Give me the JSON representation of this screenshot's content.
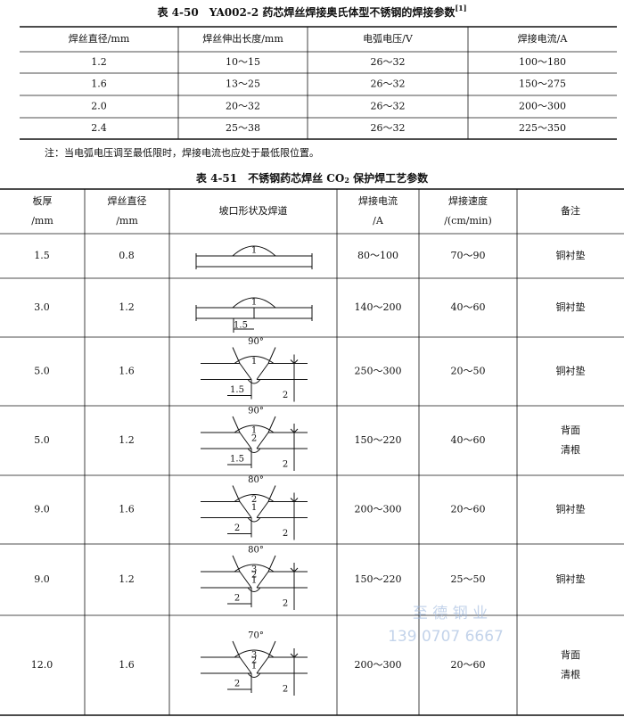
{
  "table_50": {
    "title": "表 4-50　YA002-2 药芯焊丝焊接奥氏体型不锈钢的焊接参数",
    "title_ref": "[1]",
    "headers": [
      "焊丝直径/mm",
      "焊丝伸出长度/mm",
      "电弧电压/V",
      "焊接电流/A"
    ],
    "rows": [
      [
        "1.2",
        "10～15",
        "26～32",
        "100～180"
      ],
      [
        "1.6",
        "13～25",
        "26～32",
        "150～275"
      ],
      [
        "2.0",
        "20～32",
        "26～32",
        "200～300"
      ],
      [
        "2.4",
        "25～38",
        "26～32",
        "225～350"
      ]
    ],
    "note": "注：当电弧电压调至最低限时，焊接电流也应处于最低限位置。"
  },
  "table_51": {
    "title": [
      "表 4-51　不锈钢药芯焊丝 CO",
      "2",
      " 保护焊工艺参数"
    ],
    "headers": [
      [
        "板厚",
        "/mm"
      ],
      [
        "焊丝直径",
        "/mm"
      ],
      [
        "坡口形状及焊道"
      ],
      [
        "焊接电流",
        "/A"
      ],
      [
        "焊接速度",
        "/(cm/min)"
      ],
      [
        "备注"
      ]
    ],
    "rows": [
      {
        "thickness": "1.5",
        "wire": "0.8",
        "sketch": {
          "passes": [
            "1"
          ]
        },
        "current": "80～100",
        "speed": "70～90",
        "remark": [
          "铜衬垫"
        ]
      },
      {
        "thickness": "3.0",
        "wire": "1.2",
        "sketch": {
          "passes": [
            "1"
          ],
          "gap": "1.5"
        },
        "current": "140～200",
        "speed": "40～60",
        "remark": [
          "铜衬垫"
        ]
      },
      {
        "thickness": "5.0",
        "wire": "1.6",
        "sketch": {
          "angle": "90°",
          "passes": [
            "1"
          ],
          "gap": "1.5",
          "height": "2"
        },
        "current": "250～300",
        "speed": "20～50",
        "remark": [
          "铜衬垫"
        ]
      },
      {
        "thickness": "5.0",
        "wire": "1.2",
        "sketch": {
          "angle": "90°",
          "passes": [
            "1",
            "2"
          ],
          "gap": "1.5",
          "height": "2"
        },
        "current": "150～220",
        "speed": "40～60",
        "remark": [
          "背面",
          "清根"
        ]
      },
      {
        "thickness": "9.0",
        "wire": "1.6",
        "sketch": {
          "angle": "80°",
          "passes": [
            "2",
            "1"
          ],
          "gap": "2",
          "height": "2"
        },
        "current": "200～300",
        "speed": "20～60",
        "remark": [
          "铜衬垫"
        ]
      },
      {
        "thickness": "9.0",
        "wire": "1.2",
        "sketch": {
          "angle": "80°",
          "passes": [
            "3",
            "2",
            "1"
          ],
          "gap": "2",
          "height": "2"
        },
        "current": "150～220",
        "speed": "25～50",
        "remark": [
          "铜衬垫"
        ]
      },
      {
        "thickness": "12.0",
        "wire": "1.6",
        "sketch": {
          "angle": "70°",
          "passes": [
            "3",
            "2",
            "1"
          ],
          "gap": "2",
          "height": "2"
        },
        "current": "200～300",
        "speed": "20～60",
        "remark": [
          "背面",
          "清根"
        ]
      }
    ]
  },
  "watermark": [
    "至 德 钢 业",
    "139 0707 6667"
  ]
}
